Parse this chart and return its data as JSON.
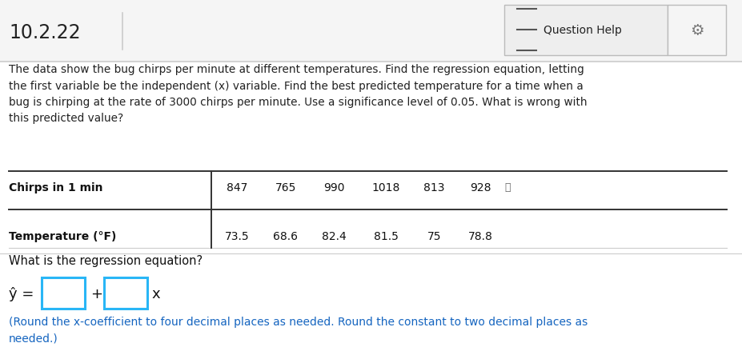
{
  "title_left": "10.2.22",
  "title_right": "Question Help",
  "bg_color": "#f5f5f5",
  "main_bg": "#ffffff",
  "paragraph": "The data show the bug chirps per minute at different temperatures. Find the regression equation, letting\nthe first variable be the independent (x) variable. Find the best predicted temperature for a time when a\nbug is chirping at the rate of 3000 chirps per minute. Use a significance level of 0.05. What is wrong with\nthis predicted value?",
  "table_row1_label": "Chirps in 1 min",
  "table_row2_label": "Temperature (°F)",
  "table_row1_values": [
    "847",
    "765",
    "990",
    "1018",
    "813",
    "928"
  ],
  "table_row2_values": [
    "73.5",
    "68.6",
    "82.4",
    "81.5",
    "75",
    "78.8"
  ],
  "question_label": "What is the regression equation?",
  "equation_prefix": "ŷ = ",
  "equation_plus": "+",
  "equation_suffix": "x",
  "note_text": "(Round the x-coefficient to four decimal places as needed. Round the constant to two decimal places as\nneeded.)",
  "note_color": "#1565c0",
  "header_line_color": "#cccccc",
  "box_border_color": "#29b6f6",
  "gear_color": "#888888",
  "question_help_bg": "#eeeeee",
  "question_help_border": "#bbbbbb"
}
